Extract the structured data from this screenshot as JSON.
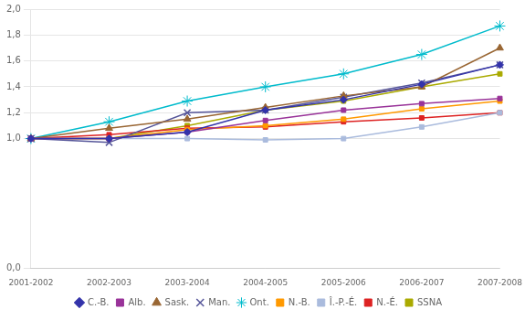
{
  "chart_data": {
    "type": "line",
    "categories": [
      "2001-2002",
      "2002-2003",
      "2003-2004",
      "2004-2005",
      "2005-2006",
      "2006-2007",
      "2007-2008"
    ],
    "series": [
      {
        "name": "C.-B.",
        "color": "#3333AA",
        "marker": "diamond",
        "values": [
          1.0,
          1.0,
          1.05,
          1.22,
          1.3,
          1.42,
          1.57
        ]
      },
      {
        "name": "Alb.",
        "color": "#993399",
        "marker": "square",
        "values": [
          1.0,
          1.0,
          1.05,
          1.14,
          1.22,
          1.27,
          1.31
        ]
      },
      {
        "name": "Sask.",
        "color": "#996633",
        "marker": "triangle",
        "values": [
          1.0,
          1.08,
          1.15,
          1.24,
          1.33,
          1.4,
          1.7
        ]
      },
      {
        "name": "Man.",
        "color": "#555599",
        "marker": "x",
        "values": [
          1.0,
          0.97,
          1.2,
          1.22,
          1.32,
          1.43,
          1.57
        ]
      },
      {
        "name": "Ont.",
        "color": "#00BBCC",
        "marker": "star",
        "values": [
          1.0,
          1.13,
          1.29,
          1.4,
          1.5,
          1.65,
          1.87
        ]
      },
      {
        "name": "N.-B.",
        "color": "#FF9900",
        "marker": "square",
        "values": [
          1.0,
          1.0,
          1.07,
          1.1,
          1.15,
          1.23,
          1.29
        ]
      },
      {
        "name": "Î.-P.-É.",
        "color": "#AABBDD",
        "marker": "square",
        "values": [
          1.0,
          1.0,
          1.0,
          0.99,
          1.0,
          1.09,
          1.2
        ]
      },
      {
        "name": "N.-É.",
        "color": "#DD2222",
        "marker": "square",
        "values": [
          1.0,
          1.03,
          1.08,
          1.09,
          1.13,
          1.16,
          1.2
        ]
      },
      {
        "name": "SSNA",
        "color": "#AAAA00",
        "marker": "square",
        "values": [
          1.0,
          1.0,
          1.1,
          1.22,
          1.29,
          1.4,
          1.5
        ]
      }
    ],
    "ylim": [
      0.0,
      2.0
    ],
    "yticks": [
      {
        "value": 0.0,
        "label": "0,0"
      },
      {
        "value": 1.0,
        "label": "1,0"
      },
      {
        "value": 1.2,
        "label": "1,2"
      },
      {
        "value": 1.4,
        "label": "1,4"
      },
      {
        "value": 1.6,
        "label": "1,6"
      },
      {
        "value": 1.8,
        "label": "1,8"
      },
      {
        "value": 2.0,
        "label": "2,0"
      }
    ],
    "grid": true,
    "legend": "bottom"
  }
}
